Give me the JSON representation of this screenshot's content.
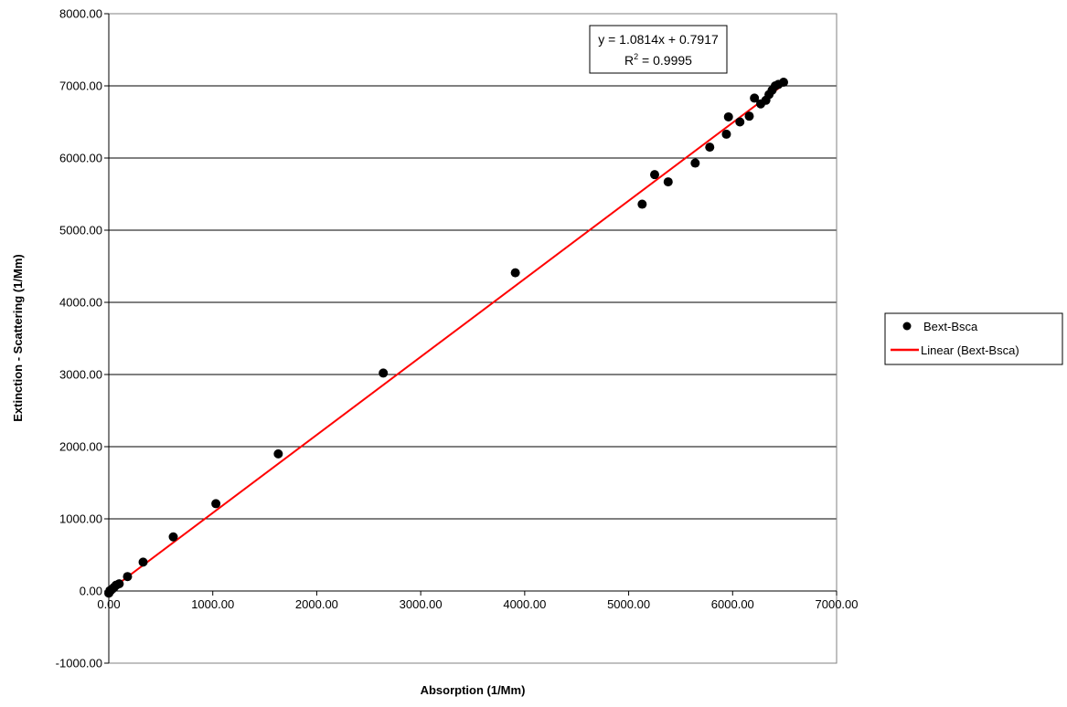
{
  "chart_data": {
    "type": "scatter",
    "title": "",
    "xlabel": "Absorption (1/Mm)",
    "ylabel": "Extinction - Scattering (1/Mm)",
    "xlim": [
      0,
      7000
    ],
    "ylim": [
      -1000,
      8000
    ],
    "x_ticks": [
      0,
      1000,
      2000,
      3000,
      4000,
      5000,
      6000,
      7000
    ],
    "y_ticks": [
      -1000,
      0,
      1000,
      2000,
      3000,
      4000,
      5000,
      6000,
      7000,
      8000
    ],
    "x_tick_labels": [
      "0.00",
      "1000.00",
      "2000.00",
      "3000.00",
      "4000.00",
      "5000.00",
      "6000.00",
      "7000.00"
    ],
    "y_tick_labels": [
      "-1000.00",
      "0.00",
      "1000.00",
      "2000.00",
      "3000.00",
      "4000.00",
      "5000.00",
      "6000.00",
      "7000.00",
      "8000.00"
    ],
    "grid": "horizontal major gridlines",
    "legend_position": "right",
    "series": [
      {
        "name": "Bext-Bsca",
        "marker": "circle",
        "color": "#000000",
        "points": [
          [
            0,
            -30
          ],
          [
            10,
            5
          ],
          [
            20,
            10
          ],
          [
            35,
            30
          ],
          [
            50,
            50
          ],
          [
            70,
            80
          ],
          [
            100,
            100
          ],
          [
            180,
            200
          ],
          [
            330,
            400
          ],
          [
            620,
            750
          ],
          [
            1030,
            1210
          ],
          [
            1630,
            1900
          ],
          [
            2640,
            3020
          ],
          [
            3910,
            4410
          ],
          [
            5130,
            5360
          ],
          [
            5250,
            5770
          ],
          [
            5380,
            5670
          ],
          [
            5640,
            5930
          ],
          [
            5780,
            6150
          ],
          [
            5940,
            6330
          ],
          [
            5960,
            6570
          ],
          [
            6070,
            6500
          ],
          [
            6160,
            6580
          ],
          [
            6210,
            6830
          ],
          [
            6270,
            6750
          ],
          [
            6320,
            6800
          ],
          [
            6350,
            6880
          ],
          [
            6380,
            6940
          ],
          [
            6410,
            7000
          ],
          [
            6440,
            7020
          ],
          [
            6490,
            7050
          ]
        ]
      },
      {
        "name": "Linear (Bext-Bsca)",
        "type": "line",
        "color": "#ff0000",
        "slope": 1.0814,
        "intercept": 0.7917,
        "x_range": [
          0,
          6500
        ]
      }
    ],
    "annotations": {
      "equation": "y = 1.0814x + 0.7917",
      "r2_prefix": "R",
      "r2_sup": "2",
      "r2_value": " = 0.9995"
    }
  }
}
